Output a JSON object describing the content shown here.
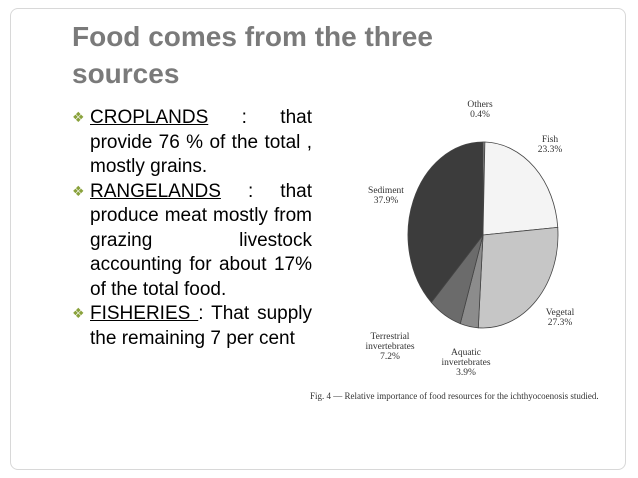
{
  "slide": {
    "title": "Food comes from the three sources",
    "bullets": [
      {
        "term": "CROPLANDS",
        "text": " : that provide 76 % of the total ,            mostly grains."
      },
      {
        "term": "RANGELANDS",
        "text": " : that produce meat mostly from grazing livestock accounting for about 17% of the total food."
      },
      {
        "term": "FISHERIES ",
        "text": ": That supply the remaining 7 per cent"
      }
    ]
  },
  "chart_data": {
    "type": "pie",
    "caption": "Fig. 4 — Relative importance of food resources for the ichthyocoenosis studied.",
    "categories": [
      "Others",
      "Fish",
      "Vegetal",
      "Aquatic invertebrates",
      "Terrestrial invertebrates",
      "Sediment"
    ],
    "values": [
      0.4,
      23.3,
      27.3,
      3.9,
      7.2,
      37.9
    ],
    "value_labels": [
      "0.4%",
      "23.3%",
      "27.3%",
      "3.9%",
      "7.2%",
      "37.9%"
    ],
    "colors": [
      "#9a9a9a",
      "#f4f4f4",
      "#c6c6c6",
      "#8c8c8c",
      "#6b6b6b",
      "#3c3c3c"
    ]
  }
}
